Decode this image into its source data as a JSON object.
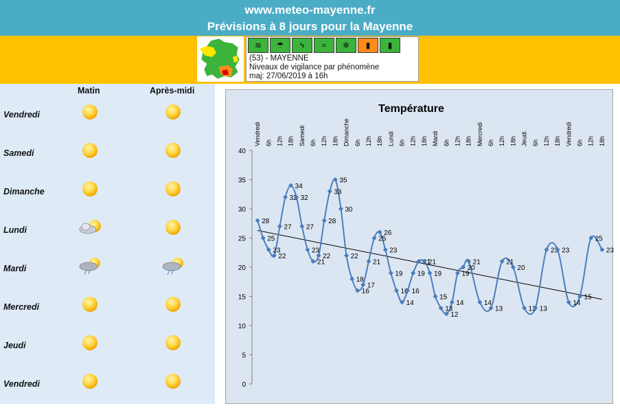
{
  "header": {
    "site": "www.meteo-mayenne.fr",
    "title": "Prévisions à 8 jours pour la Mayenne"
  },
  "vigilance": {
    "icons": [
      {
        "name": "wind-icon",
        "level": "green"
      },
      {
        "name": "rain-flood-icon",
        "level": "green"
      },
      {
        "name": "thunderstorm-icon",
        "level": "green"
      },
      {
        "name": "flood-icon",
        "level": "green"
      },
      {
        "name": "snow-ice-icon",
        "level": "green"
      },
      {
        "name": "heat-icon",
        "level": "orange"
      },
      {
        "name": "cold-icon",
        "level": "green"
      }
    ],
    "line1": "(53) - MAYENNE",
    "line2": "Niveaux de vigilance par phénomène",
    "line3": "maj: 27/06/2019 à 16h"
  },
  "forecast": {
    "col_morning": "Matin",
    "col_afternoon": "Après-midi",
    "days": [
      {
        "name": "Vendredi",
        "morning": "sun-icon",
        "afternoon": "sun-icon"
      },
      {
        "name": "Samedi",
        "morning": "sun-icon",
        "afternoon": "sun-icon"
      },
      {
        "name": "Dimanche",
        "morning": "sun-icon",
        "afternoon": "sun-icon"
      },
      {
        "name": "Lundi",
        "morning": "cloud-sun-icon",
        "afternoon": "sun-icon"
      },
      {
        "name": "Mardi",
        "morning": "storm-sun-icon",
        "afternoon": "storm-sun-icon"
      },
      {
        "name": "Mercredi",
        "morning": "sun-icon",
        "afternoon": "sun-icon"
      },
      {
        "name": "Jeudi",
        "morning": "sun-icon",
        "afternoon": "sun-icon"
      },
      {
        "name": "Vendredi",
        "morning": "sun-icon",
        "afternoon": "sun-icon"
      }
    ]
  },
  "chart_data": {
    "type": "line",
    "title": "Température",
    "xlabel": "",
    "ylabel": "",
    "ylim": [
      0,
      40
    ],
    "yticks": [
      0,
      5,
      10,
      15,
      20,
      25,
      30,
      35,
      40
    ],
    "categories": [
      "Vendredi",
      "6h",
      "12h",
      "18h",
      "Samedi",
      "6h",
      "12h",
      "18h",
      "Dimanche",
      "6h",
      "12h",
      "18h",
      "Lundi",
      "6h",
      "12h",
      "18h",
      "Mardi",
      "6h",
      "12h",
      "18h",
      "Mercredi",
      "6h",
      "12h",
      "18h",
      "Jeudi",
      "6h",
      "12h",
      "18h",
      "Vendredi",
      "6h",
      "12h",
      "18h"
    ],
    "series": [
      {
        "values": [
          28,
          25,
          23,
          22,
          27,
          32,
          34,
          32,
          27,
          23,
          21,
          22,
          28,
          33,
          35,
          30,
          22,
          18,
          16,
          17,
          21,
          25,
          26,
          23,
          19,
          16,
          14,
          16,
          19,
          21,
          21,
          19,
          15,
          13,
          12,
          14,
          19,
          20,
          21,
          14,
          13,
          21,
          20,
          13,
          13,
          23,
          23,
          14,
          15,
          25,
          23
        ],
        "x": [
          0,
          0.5,
          1,
          1.5,
          2,
          2.5,
          3,
          3.5,
          4,
          4.5,
          5,
          5.5,
          6,
          6.5,
          7,
          7.5,
          8,
          8.5,
          9,
          9.5,
          10,
          10.5,
          11,
          11.5,
          12,
          12.5,
          13,
          13.5,
          14,
          14.5,
          15,
          15.5,
          16,
          16.5,
          17,
          17.5,
          18,
          18.5,
          19,
          20,
          21,
          22,
          23,
          24,
          25,
          26,
          27,
          28,
          29,
          30,
          31
        ],
        "labels": [
          28,
          25,
          23,
          22,
          27,
          32,
          34,
          32,
          27,
          23,
          21,
          22,
          28,
          33,
          35,
          30,
          22,
          18,
          16,
          17,
          21,
          25,
          26,
          23,
          19,
          16,
          14,
          16,
          19,
          21,
          21,
          19,
          15,
          13,
          12,
          14,
          19,
          20,
          21,
          14,
          13,
          21,
          20,
          13,
          13,
          23,
          23,
          14,
          15,
          25,
          23
        ],
        "color": "#4a7ebb"
      }
    ],
    "trendline": {
      "from": [
        0,
        26.3
      ],
      "to": [
        31,
        14.5
      ],
      "color": "#000000"
    },
    "grid": false
  }
}
